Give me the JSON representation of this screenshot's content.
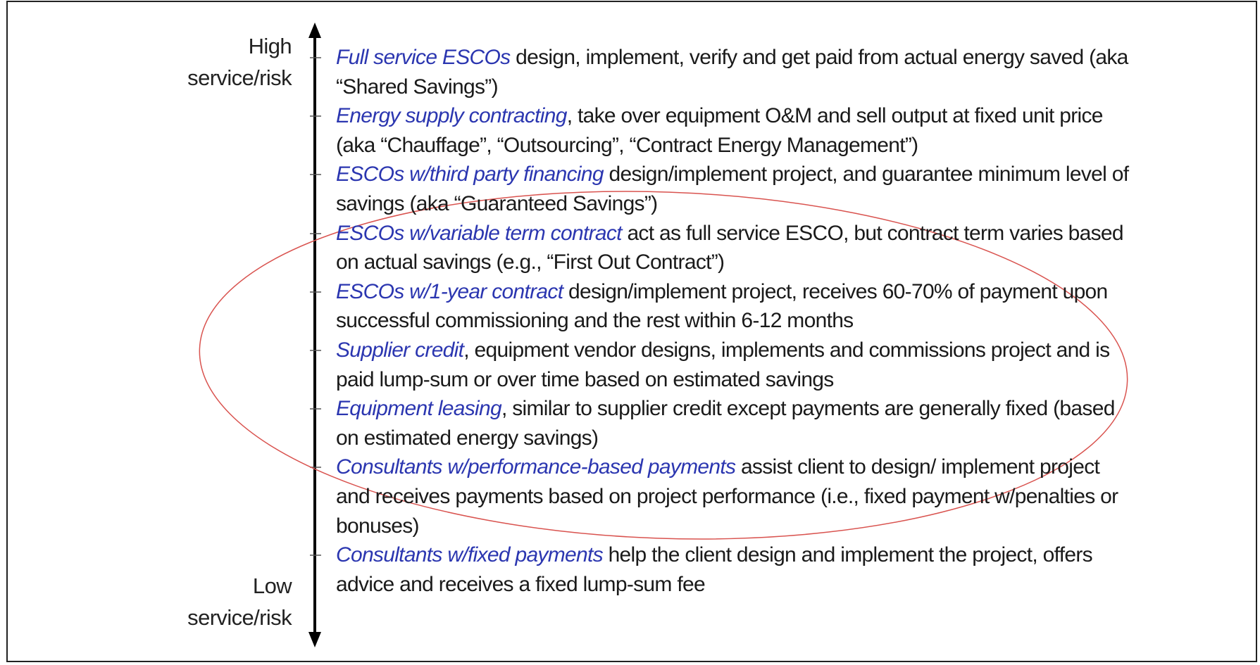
{
  "axis": {
    "high": [
      "High",
      "service/risk"
    ],
    "low": [
      "Low",
      "service/risk"
    ]
  },
  "items": [
    {
      "lead": "Full service ESCOs",
      "text": " design, implement, verify and get paid from actual energy saved (aka “Shared Savings”)"
    },
    {
      "lead": "Energy supply contracting",
      "text": ", take over equipment O&M and sell output at fixed unit price (aka “Chauffage”, “Outsourcing”, “Contract Energy Management”)"
    },
    {
      "lead": "ESCOs w/third party financing",
      "text": " design/implement project, and guarantee minimum level of savings (aka “Guaranteed Savings”)"
    },
    {
      "lead": "ESCOs w/variable term contract",
      "text": " act as full service ESCO, but contract term varies based on actual savings (e.g., “First Out Contract”)"
    },
    {
      "lead": "ESCOs w/1-year contract",
      "text": " design/implement project, receives 60-70% of payment upon successful commissioning and the rest within 6-12 months"
    },
    {
      "lead": "Supplier credit",
      "text": ", equipment vendor designs, implements and commissions project and is paid lump-sum or over time based on estimated savings"
    },
    {
      "lead": "Equipment leasing",
      "text": ", similar to supplier credit except payments are generally fixed (based on estimated energy savings)"
    },
    {
      "lead": "Consultants w/performance-based payments",
      "text": " assist client to design/ implement project and receives payments based on project performance (i.e., fixed payment w/penalties or bonuses)"
    },
    {
      "lead": "Consultants w/fixed payments",
      "text": " help the client design and implement the project, offers advice and receives a fixed lump-sum fee"
    }
  ]
}
